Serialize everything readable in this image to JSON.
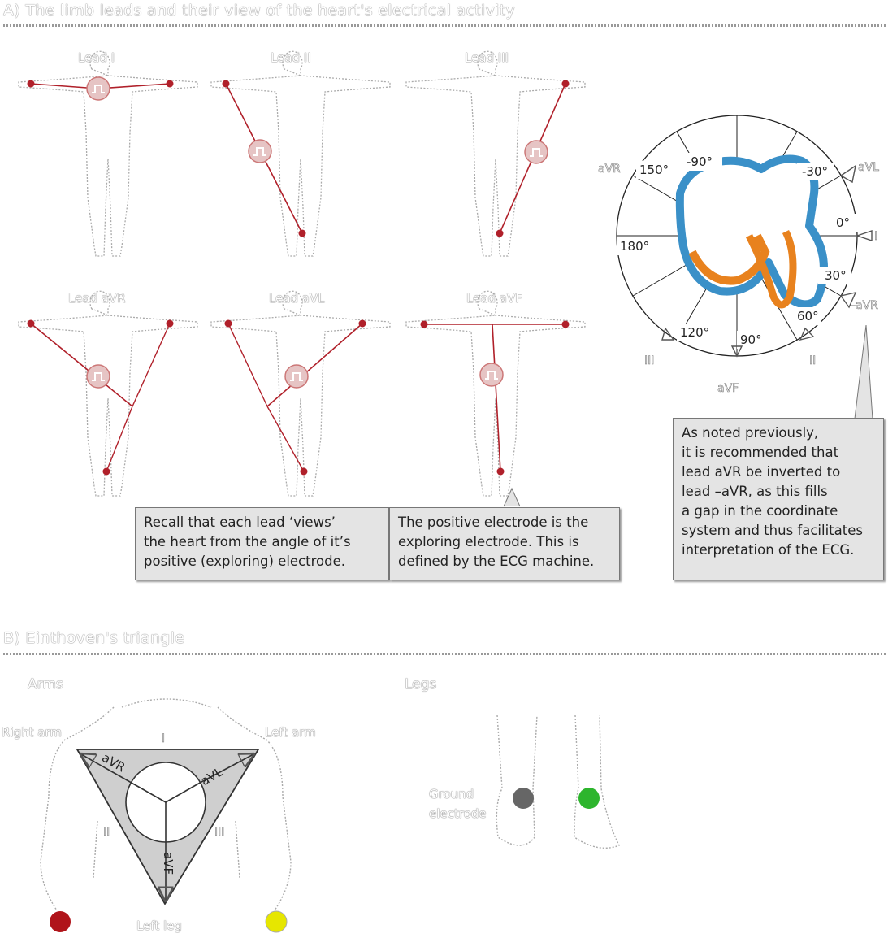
{
  "section_a": {
    "title": "A) The limb leads and their view of the heart's electrical activity",
    "panels": [
      {
        "label": "Lead I"
      },
      {
        "label": "Lead II"
      },
      {
        "label": "Lead III"
      },
      {
        "label": "Lead aVR"
      },
      {
        "label": "Lead aVL"
      },
      {
        "label": "Lead aVF"
      }
    ],
    "notes": {
      "recall": [
        "Recall that each lead ‘views’",
        "the heart from the angle of it’s",
        "positive (exploring) electrode."
      ],
      "positive": [
        "The positive electrode is the",
        "exploring electrode. This is",
        "defined by the ECG machine."
      ],
      "inverted": [
        "As noted previously,",
        "it is recommended that",
        "lead aVR be inverted to",
        "lead –aVR, as this fills",
        "a gap in the coordinate",
        "system and thus facilitates",
        "interpretation of the ECG."
      ]
    },
    "hexaxial": {
      "angles": [
        "-90°",
        "-30°",
        "0°",
        "30°",
        "60°",
        "90°",
        "120°",
        "180°",
        "150°"
      ],
      "leads": [
        "aVR",
        "aVL",
        "I",
        "–aVR",
        "II",
        "aVF",
        "III"
      ]
    }
  },
  "section_b": {
    "title": "B) Einthoven's triangle",
    "arms_label": "Arms",
    "legs_label": "Legs",
    "right_arm": "Right arm",
    "left_arm": "Left arm",
    "left_leg": "Left leg",
    "ground": [
      "Ground",
      "electrode"
    ],
    "triangle": {
      "avr": "aVR",
      "avl": "aVL",
      "avf": "aVF",
      "lead_2": "II",
      "lead_3": "III",
      "lead_1": "I"
    }
  },
  "colors": {
    "lead_line": "#b0202a",
    "heart_icon": "#d9a0a0",
    "triangle_fill": "#cfcfcf",
    "heart_blue": "#3a90c8",
    "heart_orange": "#e8821e",
    "electrode_red": "#b0141a",
    "electrode_yellow": "#e6e600",
    "electrode_green": "#2db52d",
    "electrode_grey": "#666666"
  }
}
